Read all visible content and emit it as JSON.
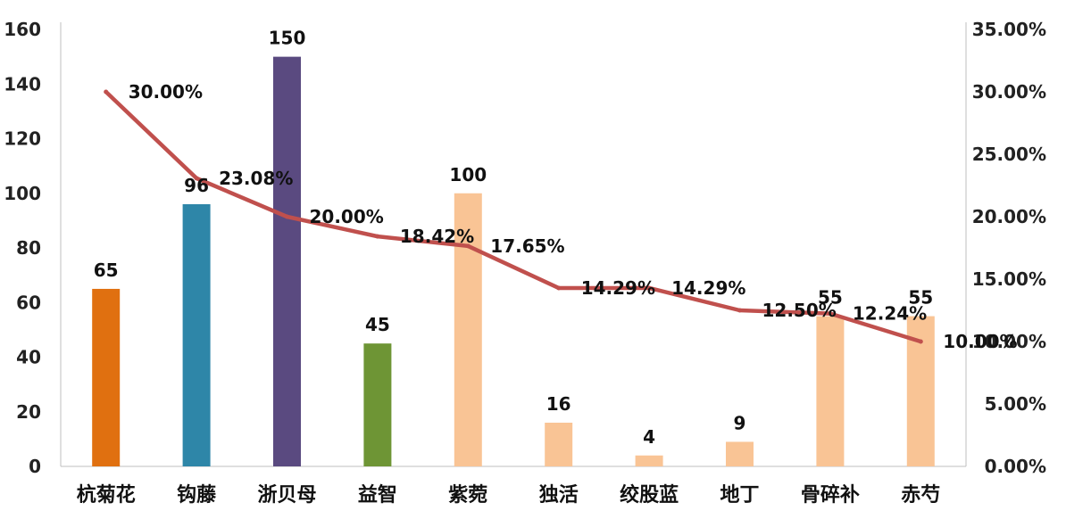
{
  "chart_data": {
    "type": "bar",
    "categories": [
      "杭菊花",
      "钩藤",
      "浙贝母",
      "益智",
      "紫菀",
      "独活",
      "绞股蓝",
      "地丁",
      "骨碎补",
      "赤芍"
    ],
    "series": [
      {
        "type": "bar",
        "values": [
          65,
          96,
          150,
          45,
          100,
          16,
          4,
          9,
          55,
          55
        ],
        "colors": [
          "#E07010",
          "#2E86A8",
          "#5A4A80",
          "#6E9535",
          "#F9C495",
          "#F9C495",
          "#F9C495",
          "#F9C495",
          "#F9C495",
          "#F9C495"
        ],
        "data_labels": [
          "65",
          "96",
          "150",
          "45",
          "100",
          "16",
          "4",
          "9",
          "55",
          "55"
        ]
      },
      {
        "type": "line",
        "axis": "right",
        "values": [
          30.0,
          23.08,
          20.0,
          18.42,
          17.65,
          14.29,
          14.29,
          12.5,
          12.24,
          10.0
        ],
        "color": "#C0504D",
        "data_labels": [
          "30.00%",
          "23.08%",
          "20.00%",
          "18.42%",
          "17.65%",
          "14.29%",
          "14.29%",
          "12.50%",
          "12.24%",
          "10.00%"
        ]
      }
    ],
    "left_axis": {
      "ylim": [
        0,
        160
      ],
      "tick_labels": [
        "0",
        "20",
        "40",
        "60",
        "80",
        "100",
        "120",
        "140",
        "160"
      ]
    },
    "right_axis": {
      "ylim": [
        0,
        35
      ],
      "tick_labels": [
        "0.00%",
        "5.00%",
        "10.00%",
        "15.00%",
        "20.00%",
        "25.00%",
        "30.00%",
        "35.00%"
      ]
    },
    "grid": false,
    "legend": "none",
    "title": "",
    "xlabel": "",
    "ylabel": ""
  }
}
